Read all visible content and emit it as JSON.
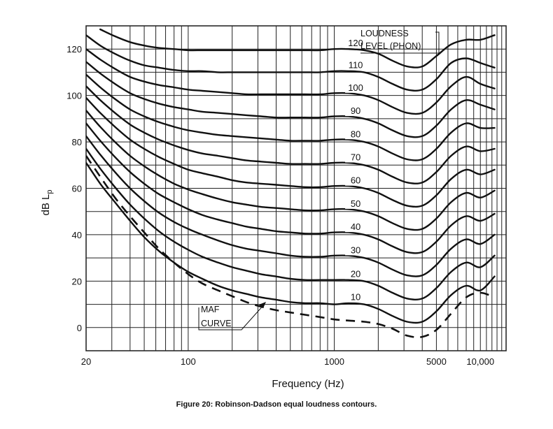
{
  "caption": "Figure 20: Robinson-Dadson equal loudness contours.",
  "chart_data": {
    "type": "line",
    "title": "",
    "xlabel": "Frequency (Hz)",
    "ylabel": "dB L",
    "ylabel_sub": "p",
    "xscale": "log",
    "xlim": [
      20,
      15000
    ],
    "ylim": [
      -10,
      130
    ],
    "grid": true,
    "x_ticks": [
      {
        "value": 20,
        "label": "20"
      },
      {
        "value": 100,
        "label": "100"
      },
      {
        "value": 1000,
        "label": "1000"
      },
      {
        "value": 5000,
        "label": "5000"
      },
      {
        "value": 10000,
        "label": "10,000"
      }
    ],
    "y_ticks": [
      {
        "value": 0,
        "label": "0"
      },
      {
        "value": 20,
        "label": "20"
      },
      {
        "value": 40,
        "label": "40"
      },
      {
        "value": 60,
        "label": "60"
      },
      {
        "value": 80,
        "label": "80"
      },
      {
        "value": 100,
        "label": "100"
      },
      {
        "value": 120,
        "label": "120"
      }
    ],
    "legend_title": [
      "LOUDNESS",
      "LEVEL (PHON)"
    ],
    "x": [
      20,
      25,
      31.5,
      40,
      50,
      63,
      80,
      100,
      125,
      160,
      200,
      250,
      315,
      400,
      500,
      630,
      800,
      1000,
      1250,
      1600,
      2000,
      2500,
      3150,
      4000,
      5000,
      6300,
      8000,
      10000,
      12500
    ],
    "series": [
      {
        "name": "10",
        "values": [
          71,
          62,
          54,
          46,
          39,
          33,
          28,
          24,
          21,
          18,
          16,
          14.5,
          13,
          12,
          11,
          10.5,
          10.5,
          10,
          10.5,
          10,
          8,
          5,
          2.5,
          2.5,
          7,
          14,
          18,
          16,
          22
        ]
      },
      {
        "name": "20",
        "values": [
          77,
          68.5,
          60.5,
          53,
          47,
          41.5,
          37,
          33.5,
          30.5,
          28,
          26,
          24.5,
          23,
          22,
          21,
          20.5,
          20.5,
          20.5,
          20.5,
          20,
          18,
          15,
          12.5,
          12.5,
          17,
          24,
          28,
          26,
          31
        ]
      },
      {
        "name": "30",
        "values": [
          82.5,
          74.5,
          67,
          60,
          54.5,
          49.5,
          45.5,
          42.5,
          40,
          37.5,
          35.5,
          34,
          33,
          32,
          31,
          30.5,
          30.5,
          31,
          31,
          30,
          28,
          25,
          22.5,
          22.5,
          27,
          34,
          38,
          36,
          40
        ]
      },
      {
        "name": "40",
        "values": [
          88,
          80.5,
          73.5,
          67,
          62,
          57.5,
          54,
          51,
          48.5,
          46.5,
          45,
          43.5,
          42.5,
          41.5,
          41,
          40.5,
          40.5,
          41,
          41,
          40,
          38,
          35,
          32.5,
          32.5,
          37,
          44,
          48,
          46,
          49
        ]
      },
      {
        "name": "50",
        "values": [
          93.5,
          86.5,
          80,
          74,
          69.5,
          65.5,
          62,
          59.5,
          57.5,
          55.5,
          54,
          53,
          52,
          51.5,
          51,
          50.5,
          50.5,
          51,
          51,
          50,
          48,
          45,
          42.5,
          42.5,
          47,
          54,
          58,
          56,
          59
        ]
      },
      {
        "name": "60",
        "values": [
          99,
          92.5,
          86.5,
          81,
          77,
          73.5,
          70.5,
          68,
          66.5,
          65,
          63.5,
          62.5,
          62,
          61.5,
          61,
          60.5,
          60.5,
          61,
          61,
          60,
          58,
          55,
          52.5,
          52.5,
          57,
          64,
          68,
          66,
          68
        ]
      },
      {
        "name": "70",
        "values": [
          104,
          98,
          92.5,
          87.5,
          84,
          81,
          78.5,
          76.5,
          75,
          74,
          73,
          72,
          71.5,
          71,
          70.5,
          70.5,
          70.5,
          71,
          71,
          70,
          68,
          65,
          62.5,
          62.5,
          67,
          74,
          78,
          76,
          77
        ]
      },
      {
        "name": "80",
        "values": [
          109,
          103.5,
          98.5,
          94,
          91,
          88.5,
          86.5,
          85,
          84,
          83,
          82.5,
          82,
          81.5,
          81,
          80.5,
          80.5,
          80.5,
          81,
          81,
          80,
          78,
          75,
          72.5,
          72.5,
          77,
          84,
          88,
          86,
          86
        ]
      },
      {
        "name": "90",
        "values": [
          114.5,
          109.5,
          105,
          101,
          98.5,
          96.5,
          95,
          94,
          93,
          92.5,
          92,
          91.5,
          91,
          90.5,
          90.5,
          90.5,
          90.5,
          91,
          91,
          90,
          88,
          85,
          82.5,
          82.5,
          87,
          94,
          98,
          96,
          94
        ]
      },
      {
        "name": "100",
        "values": [
          120,
          115.5,
          111.5,
          108,
          106,
          104.5,
          103.5,
          102.5,
          102,
          101.5,
          101,
          100.5,
          100.5,
          100.5,
          100.5,
          100.5,
          100.5,
          101,
          101,
          100,
          98,
          95,
          92.5,
          92.5,
          97,
          104,
          108,
          105,
          103
        ]
      },
      {
        "name": "110",
        "values": [
          126,
          121.5,
          118,
          115,
          113,
          112,
          111,
          110.5,
          110.5,
          110,
          110,
          110,
          110,
          110,
          110,
          110,
          110,
          110.5,
          110.5,
          110,
          108,
          105,
          102.5,
          102.5,
          107,
          114,
          116,
          114,
          112
        ]
      },
      {
        "name": "120",
        "values": [
          null,
          128.5,
          125.5,
          123,
          121.5,
          120.5,
          120,
          119.5,
          119.5,
          119.5,
          119.5,
          119.5,
          119.5,
          119.5,
          119.5,
          119.5,
          119.5,
          120,
          120,
          119.5,
          118,
          115,
          112.5,
          112.5,
          117,
          122,
          124,
          124,
          126
        ]
      },
      {
        "name": "MAF CURVE",
        "dashed": true,
        "values": [
          74,
          65,
          56,
          48,
          41,
          34,
          28,
          23,
          19,
          16,
          13.5,
          11,
          9,
          7.5,
          6.5,
          5.5,
          4.5,
          3.5,
          3,
          2.5,
          1.5,
          -0.5,
          -3.5,
          -4,
          -1,
          6,
          13,
          15,
          13
        ]
      }
    ],
    "annotations": [
      {
        "text": "MAF",
        "line": 1
      },
      {
        "text": "CURVE",
        "line": 2
      }
    ]
  }
}
